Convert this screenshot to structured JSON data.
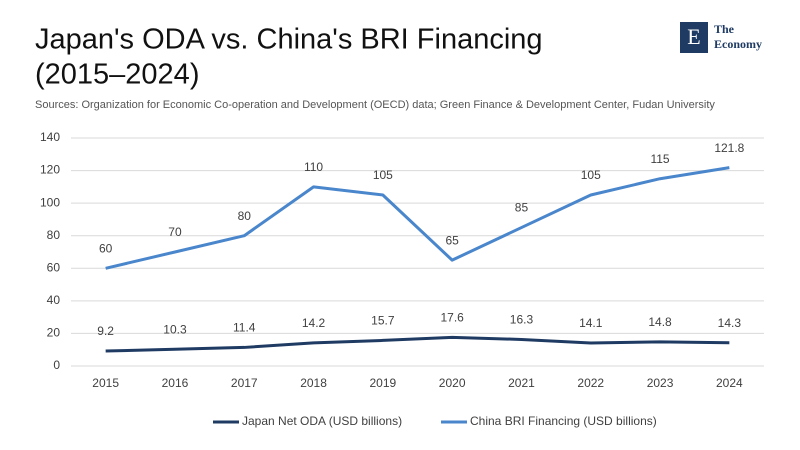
{
  "logo": {
    "letter": "E",
    "line1": "The",
    "line2": "Economy"
  },
  "chart_data": {
    "type": "line",
    "title": [
      "Japan's ODA vs. China's BRI Financing",
      "(2015–2024)"
    ],
    "subtitle": "Sources: Organization for Economic Co-operation and Development (OECD) data; Green Finance & Development Center, Fudan University",
    "categories": [
      "2015",
      "2016",
      "2017",
      "2018",
      "2019",
      "2020",
      "2021",
      "2022",
      "2023",
      "2024"
    ],
    "series": [
      {
        "name": "Japan Net ODA (USD billions)",
        "color": "#1f3b63",
        "values": [
          9.2,
          10.3,
          11.4,
          14.2,
          15.7,
          17.6,
          16.3,
          14.1,
          14.8,
          14.3
        ]
      },
      {
        "name": "China BRI Financing (USD billions)",
        "color": "#4a86cc",
        "values": [
          60,
          70,
          80,
          110,
          105,
          65,
          85,
          105,
          115,
          121.8
        ]
      }
    ],
    "ylim": [
      0,
      140
    ],
    "yticks": [
      0,
      20,
      40,
      60,
      80,
      100,
      120,
      140
    ],
    "grid": true,
    "legend": "bottom"
  }
}
